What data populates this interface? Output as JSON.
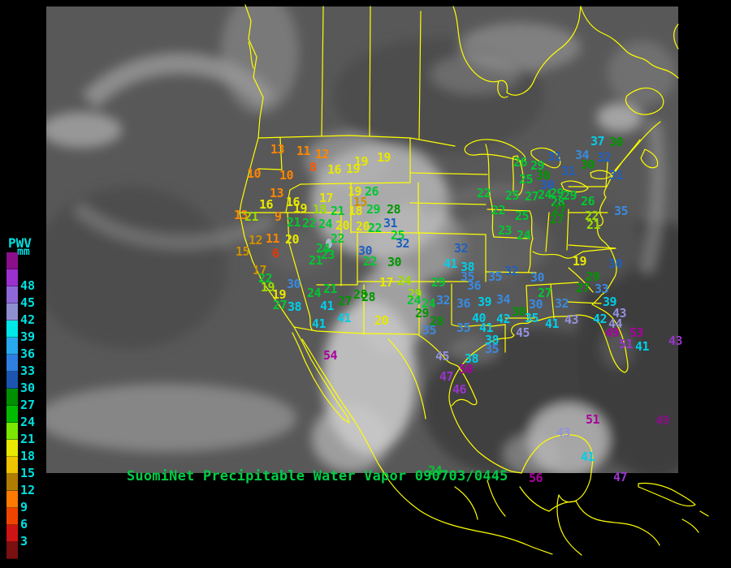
{
  "header": {
    "title": "SuomiNet Precipitable Water Vapor 090703/0445",
    "color": "#00cc44"
  },
  "legend": {
    "title": "PWV",
    "unit": "mm",
    "label_color": "#00e0e0",
    "entries": [
      {
        "label": "",
        "color": "#8a0f8a"
      },
      {
        "label": "48",
        "color": "#9a30d0"
      },
      {
        "label": "45",
        "color": "#8f68d8"
      },
      {
        "label": "42",
        "color": "#8f8fd0"
      },
      {
        "label": "39",
        "color": "#00e8e8"
      },
      {
        "label": "36",
        "color": "#28aaee"
      },
      {
        "label": "33",
        "color": "#2f7fe0"
      },
      {
        "label": "30",
        "color": "#1b55b0"
      },
      {
        "label": "27",
        "color": "#008f00"
      },
      {
        "label": "24",
        "color": "#00bb00"
      },
      {
        "label": "21",
        "color": "#7ae800"
      },
      {
        "label": "18",
        "color": "#e8e800"
      },
      {
        "label": "15",
        "color": "#efc400"
      },
      {
        "label": "12",
        "color": "#b07d00"
      },
      {
        "label": "9",
        "color": "#ff7a00"
      },
      {
        "label": "6",
        "color": "#ee4400"
      },
      {
        "label": "3",
        "color": "#cc1414"
      },
      {
        "label": "",
        "color": "#7a1010"
      }
    ]
  },
  "map": {
    "outline_color": "#ffff00"
  },
  "palette": {
    "or": "#ff8500",
    "ro": "#ff5500",
    "rd": "#ee3300",
    "gold": "#cc8f00",
    "yl": "#e8e800",
    "yg": "#9ade00",
    "gr": "#00c830",
    "dg": "#009600",
    "db": "#1f5fc0",
    "mb": "#3a8ae0",
    "cy": "#00cfe8",
    "lp": "#9492dc",
    "vl": "#9a35cc",
    "mg": "#aa00a0",
    "dmg": "#8a0f8a"
  },
  "stations": [
    [
      "13",
      333,
      177,
      "or"
    ],
    [
      "11",
      365,
      179,
      "or"
    ],
    [
      "12",
      388,
      183,
      "or"
    ],
    [
      "19",
      464,
      187,
      "yl"
    ],
    [
      "10",
      304,
      207,
      "or"
    ],
    [
      "10",
      344,
      209,
      "or"
    ],
    [
      "8",
      381,
      199,
      "ro"
    ],
    [
      "16",
      403,
      202,
      "yl"
    ],
    [
      "19",
      426,
      201,
      "yl"
    ],
    [
      "19",
      436,
      192,
      "yl"
    ],
    [
      "13",
      332,
      231,
      "or"
    ],
    [
      "16",
      319,
      245,
      "yl"
    ],
    [
      "16",
      352,
      242,
      "yl"
    ],
    [
      "17",
      393,
      237,
      "yl"
    ],
    [
      "19",
      428,
      229,
      "yl"
    ],
    [
      "26",
      449,
      229,
      "gr"
    ],
    [
      "15",
      435,
      242,
      "gold"
    ],
    [
      "19",
      361,
      250,
      "yl"
    ],
    [
      "18",
      385,
      251,
      "yg"
    ],
    [
      "21",
      407,
      253,
      "gr"
    ],
    [
      "18",
      429,
      253,
      "yl"
    ],
    [
      "29",
      451,
      251,
      "gr"
    ],
    [
      "28",
      476,
      251,
      "dg"
    ],
    [
      "13",
      288,
      258,
      "or"
    ],
    [
      "21",
      301,
      260,
      "yg"
    ],
    [
      "9",
      338,
      260,
      "or"
    ],
    [
      "21",
      353,
      267,
      "gr"
    ],
    [
      "22",
      372,
      268,
      "gr"
    ],
    [
      "24",
      392,
      269,
      "gr"
    ],
    [
      "20",
      413,
      271,
      "yl"
    ],
    [
      "12",
      306,
      289,
      "gold"
    ],
    [
      "11",
      327,
      287,
      "or"
    ],
    [
      "20",
      351,
      288,
      "yl"
    ],
    [
      "15",
      290,
      303,
      "gold"
    ],
    [
      "6",
      335,
      305,
      "rd"
    ],
    [
      "22",
      407,
      287,
      "gr"
    ],
    [
      "24",
      389,
      299,
      "gr"
    ],
    [
      "23",
      395,
      307,
      "gr"
    ],
    [
      "21",
      380,
      314,
      "gr"
    ],
    [
      "30",
      441,
      302,
      "db"
    ],
    [
      "22",
      447,
      315,
      "gr"
    ],
    [
      "17",
      311,
      326,
      "gold"
    ],
    [
      "22",
      318,
      336,
      "gr"
    ],
    [
      "19",
      321,
      347,
      "yg"
    ],
    [
      "30",
      353,
      343,
      "mb"
    ],
    [
      "19",
      335,
      356,
      "yl"
    ],
    [
      "24",
      378,
      354,
      "gr"
    ],
    [
      "21",
      398,
      349,
      "gr"
    ],
    [
      "27",
      336,
      369,
      "gr"
    ],
    [
      "38",
      354,
      371,
      "cy"
    ],
    [
      "41",
      394,
      370,
      "cy"
    ],
    [
      "27",
      416,
      364,
      "dg"
    ],
    [
      "28",
      435,
      356,
      "dg"
    ],
    [
      "41",
      415,
      385,
      "cy"
    ],
    [
      "41",
      384,
      392,
      "cy"
    ],
    [
      "20",
      461,
      388,
      "yl"
    ],
    [
      "54",
      398,
      431,
      "mg"
    ],
    [
      "20",
      438,
      272,
      "yl"
    ],
    [
      "22",
      453,
      274,
      "gr"
    ],
    [
      "31",
      472,
      268,
      "db"
    ],
    [
      "25",
      481,
      283,
      "gr"
    ],
    [
      "32",
      487,
      293,
      "db"
    ],
    [
      "30",
      477,
      316,
      "dg"
    ],
    [
      "32",
      559,
      299,
      "db"
    ],
    [
      "41",
      546,
      318,
      "cy"
    ],
    [
      "38",
      567,
      322,
      "cy"
    ],
    [
      "35",
      567,
      334,
      "mb"
    ],
    [
      "36",
      575,
      345,
      "mb"
    ],
    [
      "29",
      531,
      341,
      "gr"
    ],
    [
      "35",
      601,
      334,
      "mb"
    ],
    [
      "32",
      621,
      327,
      "db"
    ],
    [
      "30",
      653,
      335,
      "mb"
    ],
    [
      "17",
      467,
      341,
      "yl"
    ],
    [
      "24",
      489,
      339,
      "yg"
    ],
    [
      "29",
      502,
      355,
      "yg"
    ],
    [
      "24",
      501,
      363,
      "gr"
    ],
    [
      "24",
      519,
      367,
      "gr"
    ],
    [
      "32",
      537,
      363,
      "mb"
    ],
    [
      "28",
      445,
      359,
      "dg"
    ],
    [
      "29",
      511,
      379,
      "dg"
    ],
    [
      "28",
      529,
      389,
      "dg"
    ],
    [
      "35",
      520,
      400,
      "mb"
    ],
    [
      "36",
      562,
      367,
      "mb"
    ],
    [
      "39",
      588,
      365,
      "cy"
    ],
    [
      "34",
      611,
      362,
      "mb"
    ],
    [
      "30",
      630,
      377,
      "dg"
    ],
    [
      "30",
      651,
      368,
      "mb"
    ],
    [
      "32",
      683,
      367,
      "mb"
    ],
    [
      "35",
      562,
      397,
      "mb"
    ],
    [
      "40",
      581,
      385,
      "cy"
    ],
    [
      "41",
      590,
      397,
      "cy"
    ],
    [
      "42",
      611,
      386,
      "cy"
    ],
    [
      "35",
      646,
      385,
      "cy"
    ],
    [
      "41",
      671,
      392,
      "cy"
    ],
    [
      "43",
      695,
      387,
      "lp"
    ],
    [
      "42",
      730,
      386,
      "cy"
    ],
    [
      "38",
      597,
      412,
      "cy"
    ],
    [
      "35",
      597,
      423,
      "mb"
    ],
    [
      "45",
      635,
      403,
      "lp"
    ],
    [
      "45",
      536,
      432,
      "lp"
    ],
    [
      "38",
      572,
      435,
      "cy"
    ],
    [
      "50",
      565,
      448,
      "mg"
    ],
    [
      "47",
      541,
      457,
      "vl"
    ],
    [
      "46",
      557,
      473,
      "vl"
    ],
    [
      "27",
      662,
      354,
      "gr"
    ],
    [
      "27",
      709,
      348,
      "dg"
    ],
    [
      "33",
      732,
      349,
      "mb"
    ],
    [
      "29",
      721,
      334,
      "dg"
    ],
    [
      "19",
      705,
      315,
      "yl"
    ],
    [
      "30",
      749,
      318,
      "db"
    ],
    [
      "39",
      742,
      365,
      "cy"
    ],
    [
      "43",
      754,
      379,
      "lp"
    ],
    [
      "44",
      749,
      392,
      "lp"
    ],
    [
      "49",
      745,
      403,
      "mg"
    ],
    [
      "53",
      775,
      403,
      "mg"
    ],
    [
      "51",
      762,
      417,
      "vl"
    ],
    [
      "41",
      782,
      420,
      "cy"
    ],
    [
      "43",
      823,
      413,
      "vl"
    ],
    [
      "51",
      721,
      510,
      "mg"
    ],
    [
      "43",
      685,
      526,
      "lp"
    ],
    [
      "49",
      807,
      511,
      "dmg"
    ],
    [
      "41",
      715,
      556,
      "cy"
    ],
    [
      "56",
      651,
      582,
      "mg"
    ],
    [
      "47",
      755,
      581,
      "vl"
    ],
    [
      "24",
      527,
      573,
      "gr"
    ],
    [
      "22",
      587,
      231,
      "gr"
    ],
    [
      "25",
      622,
      234,
      "gr"
    ],
    [
      "27",
      646,
      235,
      "gr"
    ],
    [
      "24",
      662,
      233,
      "gr"
    ],
    [
      "29",
      677,
      231,
      "gr"
    ],
    [
      "29",
      693,
      234,
      "gr"
    ],
    [
      "28",
      678,
      242,
      "gr"
    ],
    [
      "27",
      680,
      251,
      "dg"
    ],
    [
      "27",
      677,
      263,
      "dg"
    ],
    [
      "26",
      715,
      241,
      "gr"
    ],
    [
      "22",
      720,
      259,
      "yg"
    ],
    [
      "21",
      722,
      270,
      "yg"
    ],
    [
      "35",
      756,
      253,
      "mb"
    ],
    [
      "22",
      605,
      252,
      "gr"
    ],
    [
      "25",
      634,
      259,
      "gr"
    ],
    [
      "23",
      613,
      277,
      "gr"
    ],
    [
      "24",
      636,
      283,
      "gr"
    ],
    [
      "26",
      632,
      193,
      "gr"
    ],
    [
      "29",
      653,
      197,
      "gr"
    ],
    [
      "25",
      639,
      214,
      "gr"
    ],
    [
      "30",
      660,
      209,
      "dg"
    ],
    [
      "30",
      665,
      221,
      "db"
    ],
    [
      "31",
      674,
      186,
      "db"
    ],
    [
      "34",
      708,
      184,
      "mb"
    ],
    [
      "32",
      735,
      187,
      "db"
    ],
    [
      "30",
      715,
      196,
      "dg"
    ],
    [
      "31",
      691,
      204,
      "db"
    ],
    [
      "31",
      750,
      209,
      "db"
    ],
    [
      "37",
      727,
      167,
      "cy"
    ],
    [
      "30",
      750,
      168,
      "dg"
    ]
  ]
}
